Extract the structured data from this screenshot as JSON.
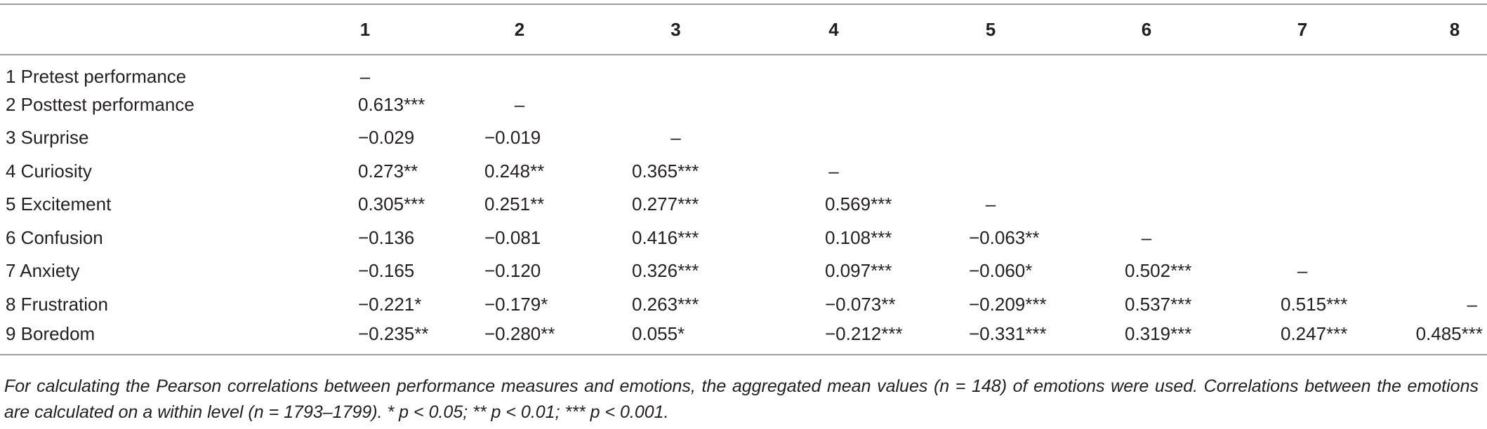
{
  "columns": [
    "",
    "1",
    "2",
    "3",
    "4",
    "5",
    "6",
    "7",
    "8"
  ],
  "rows": [
    {
      "label": "1 Pretest performance",
      "cells": [
        "–",
        "",
        "",
        "",
        "",
        "",
        "",
        ""
      ]
    },
    {
      "label": "2 Posttest performance",
      "cells": [
        "0.613***",
        "–",
        "",
        "",
        "",
        "",
        "",
        ""
      ]
    },
    {
      "label": "3 Surprise",
      "cells": [
        "−0.029",
        "−0.019",
        "–",
        "",
        "",
        "",
        "",
        ""
      ]
    },
    {
      "label": "4 Curiosity",
      "cells": [
        "0.273**",
        "0.248**",
        "0.365***",
        "–",
        "",
        "",
        "",
        ""
      ]
    },
    {
      "label": "5 Excitement",
      "cells": [
        "0.305***",
        "0.251**",
        "0.277***",
        "0.569***",
        "–",
        "",
        "",
        ""
      ]
    },
    {
      "label": "6 Confusion",
      "cells": [
        "−0.136",
        "−0.081",
        "0.416***",
        "0.108***",
        "−0.063**",
        "–",
        "",
        ""
      ]
    },
    {
      "label": "7 Anxiety",
      "cells": [
        "−0.165",
        "−0.120",
        "0.326***",
        "0.097***",
        "−0.060*",
        "0.502***",
        "–",
        ""
      ]
    },
    {
      "label": "8 Frustration",
      "cells": [
        "−0.221*",
        "−0.179*",
        "0.263***",
        "−0.073**",
        "−0.209***",
        "0.537***",
        "0.515***",
        "–"
      ]
    },
    {
      "label": "9 Boredom",
      "cells": [
        "−0.235**",
        "−0.280**",
        "0.055*",
        "−0.212***",
        "−0.331***",
        "0.319***",
        "0.247***",
        "0.485***"
      ]
    }
  ],
  "footnote": "For calculating the Pearson correlations between performance measures and emotions, the aggregated mean values (n = 148) of emotions were used. Correlations between the emotions are calculated on a within level (n = 1793–1799). * p < 0.05; ** p < 0.01; *** p < 0.001."
}
